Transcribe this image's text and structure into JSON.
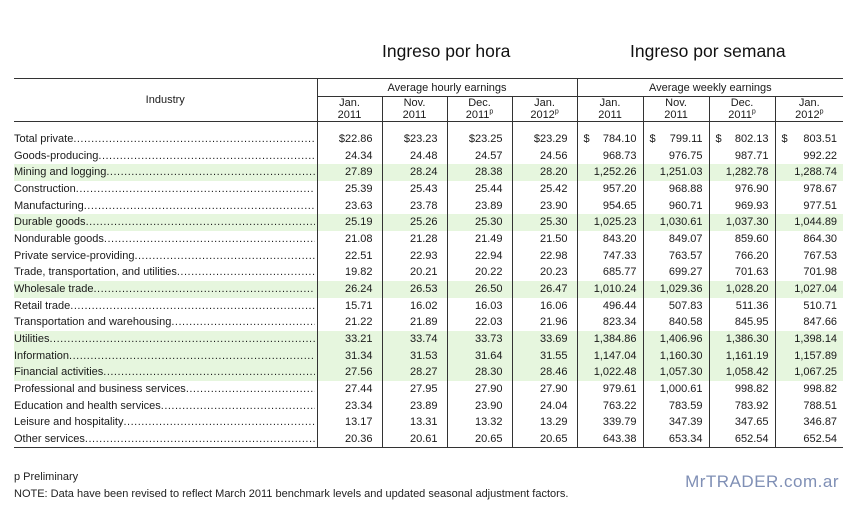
{
  "titles": {
    "hourly": "Ingreso por hora",
    "weekly": "Ingreso por semana"
  },
  "header": {
    "industry": "Industry",
    "hourly_group": "Average hourly earnings",
    "weekly_group": "Average weekly earnings",
    "periods": [
      {
        "month": "Jan.",
        "year": "2011",
        "prelim": ""
      },
      {
        "month": "Nov.",
        "year": "2011",
        "prelim": ""
      },
      {
        "month": "Dec.",
        "year": "2011",
        "prelim": "p"
      },
      {
        "month": "Jan.",
        "year": "2012",
        "prelim": "p"
      }
    ]
  },
  "rows": [
    {
      "label": "Total private",
      "level": 0,
      "highlight": false,
      "hourly": [
        "$22.86",
        "$23.23",
        "$23.25",
        "$23.29"
      ],
      "weekly": [
        "784.10",
        "799.11",
        "802.13",
        "803.51"
      ]
    },
    {
      "label": "Goods-producing",
      "level": 1,
      "highlight": false,
      "hourly": [
        "24.34",
        "24.48",
        "24.57",
        "24.56"
      ],
      "weekly": [
        "968.73",
        "976.75",
        "987.71",
        "992.22"
      ]
    },
    {
      "label": "Mining and logging",
      "level": 2,
      "highlight": true,
      "hourly": [
        "27.89",
        "28.24",
        "28.38",
        "28.20"
      ],
      "weekly": [
        "1,252.26",
        "1,251.03",
        "1,282.78",
        "1,288.74"
      ]
    },
    {
      "label": "Construction",
      "level": 2,
      "highlight": false,
      "hourly": [
        "25.39",
        "25.43",
        "25.44",
        "25.42"
      ],
      "weekly": [
        "957.20",
        "968.88",
        "976.90",
        "978.67"
      ]
    },
    {
      "label": "Manufacturing",
      "level": 2,
      "highlight": false,
      "hourly": [
        "23.63",
        "23.78",
        "23.89",
        "23.90"
      ],
      "weekly": [
        "954.65",
        "960.71",
        "969.93",
        "977.51"
      ]
    },
    {
      "label": "Durable goods",
      "level": 3,
      "highlight": true,
      "hourly": [
        "25.19",
        "25.26",
        "25.30",
        "25.30"
      ],
      "weekly": [
        "1,025.23",
        "1,030.61",
        "1,037.30",
        "1,044.89"
      ]
    },
    {
      "label": "Nondurable goods",
      "level": 3,
      "highlight": false,
      "hourly": [
        "21.08",
        "21.28",
        "21.49",
        "21.50"
      ],
      "weekly": [
        "843.20",
        "849.07",
        "859.60",
        "864.30"
      ]
    },
    {
      "label": "Private service-providing",
      "level": 1,
      "highlight": false,
      "hourly": [
        "22.51",
        "22.93",
        "22.94",
        "22.98"
      ],
      "weekly": [
        "747.33",
        "763.57",
        "766.20",
        "767.53"
      ]
    },
    {
      "label": "Trade, transportation, and utilities",
      "level": 2,
      "highlight": false,
      "hourly": [
        "19.82",
        "20.21",
        "20.22",
        "20.23"
      ],
      "weekly": [
        "685.77",
        "699.27",
        "701.63",
        "701.98"
      ]
    },
    {
      "label": "Wholesale trade",
      "level": 3,
      "highlight": true,
      "hourly": [
        "26.24",
        "26.53",
        "26.50",
        "26.47"
      ],
      "weekly": [
        "1,010.24",
        "1,029.36",
        "1,028.20",
        "1,027.04"
      ]
    },
    {
      "label": "Retail trade",
      "level": 3,
      "highlight": false,
      "hourly": [
        "15.71",
        "16.02",
        "16.03",
        "16.06"
      ],
      "weekly": [
        "496.44",
        "507.83",
        "511.36",
        "510.71"
      ]
    },
    {
      "label": "Transportation and warehousing",
      "level": 3,
      "highlight": false,
      "hourly": [
        "21.22",
        "21.89",
        "22.03",
        "21.96"
      ],
      "weekly": [
        "823.34",
        "840.58",
        "845.95",
        "847.66"
      ]
    },
    {
      "label": "Utilities",
      "level": 3,
      "highlight": true,
      "hourly": [
        "33.21",
        "33.74",
        "33.73",
        "33.69"
      ],
      "weekly": [
        "1,384.86",
        "1,406.96",
        "1,386.30",
        "1,398.14"
      ]
    },
    {
      "label": "Information",
      "level": 2,
      "highlight": true,
      "hourly": [
        "31.34",
        "31.53",
        "31.64",
        "31.55"
      ],
      "weekly": [
        "1,147.04",
        "1,160.30",
        "1,161.19",
        "1,157.89"
      ]
    },
    {
      "label": "Financial activities",
      "level": 2,
      "highlight": true,
      "hourly": [
        "27.56",
        "28.27",
        "28.30",
        "28.46"
      ],
      "weekly": [
        "1,022.48",
        "1,057.30",
        "1,058.42",
        "1,067.25"
      ]
    },
    {
      "label": "Professional and business services",
      "level": 2,
      "highlight": false,
      "hourly": [
        "27.44",
        "27.95",
        "27.90",
        "27.90"
      ],
      "weekly": [
        "979.61",
        "1,000.61",
        "998.82",
        "998.82"
      ]
    },
    {
      "label": "Education and health services",
      "level": 2,
      "highlight": false,
      "hourly": [
        "23.34",
        "23.89",
        "23.90",
        "24.04"
      ],
      "weekly": [
        "763.22",
        "783.59",
        "783.92",
        "788.51"
      ]
    },
    {
      "label": "Leisure and hospitality",
      "level": 2,
      "highlight": false,
      "hourly": [
        "13.17",
        "13.31",
        "13.32",
        "13.29"
      ],
      "weekly": [
        "339.79",
        "347.39",
        "347.65",
        "346.87"
      ]
    },
    {
      "label": "Other services",
      "level": 2,
      "highlight": false,
      "hourly": [
        "20.36",
        "20.61",
        "20.65",
        "20.65"
      ],
      "weekly": [
        "643.38",
        "653.34",
        "652.54",
        "652.54"
      ]
    }
  ],
  "weekly_currency_symbol": "$",
  "footnotes": {
    "preliminary": "p Preliminary",
    "note": "NOTE: Data have been revised to reflect March 2011 benchmark levels and updated seasonal adjustment factors."
  },
  "watermark": "MrTRADER.com.ar",
  "colors": {
    "highlight_row": "#e6f6de",
    "watermark": "#7f8fb5"
  }
}
